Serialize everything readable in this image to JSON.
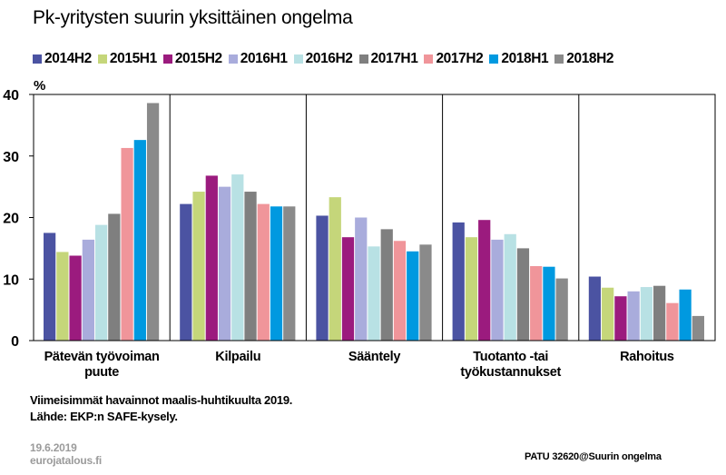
{
  "title": "Pk-yritysten suurin yksittäinen ongelma",
  "chart_data": {
    "type": "bar",
    "y_unit": "%",
    "ylim": [
      0,
      40
    ],
    "yticks": [
      "0",
      "10",
      "20",
      "30",
      "40"
    ],
    "grid": false,
    "legend_position": "top",
    "categories": [
      [
        "Pätevän työvoiman",
        "puute"
      ],
      [
        "Kilpailu"
      ],
      [
        "Sääntely"
      ],
      [
        "Tuotanto -tai",
        "työkustannukset"
      ],
      [
        "Rahoitus"
      ]
    ],
    "series": [
      {
        "name": "2014H2",
        "color": "#4b53a2",
        "values": [
          17.5,
          22.2,
          20.3,
          19.2,
          10.4
        ]
      },
      {
        "name": "2015H1",
        "color": "#c5d67a",
        "values": [
          14.4,
          24.2,
          23.3,
          16.8,
          8.6
        ]
      },
      {
        "name": "2015H2",
        "color": "#9b1b7e",
        "values": [
          13.8,
          26.8,
          16.8,
          19.6,
          7.2
        ]
      },
      {
        "name": "2016H1",
        "color": "#a9acdc",
        "values": [
          16.4,
          25.0,
          20.0,
          16.4,
          8.0
        ]
      },
      {
        "name": "2016H2",
        "color": "#b8e1e4",
        "values": [
          18.8,
          27.0,
          15.3,
          17.3,
          8.7
        ]
      },
      {
        "name": "2017H1",
        "color": "#7f7f7f",
        "values": [
          20.6,
          24.2,
          18.1,
          15.0,
          8.9
        ]
      },
      {
        "name": "2017H2",
        "color": "#f0959a",
        "values": [
          31.3,
          22.2,
          16.2,
          12.1,
          6.1
        ]
      },
      {
        "name": "2018H1",
        "color": "#0099e0",
        "values": [
          32.6,
          21.8,
          14.5,
          12.0,
          8.3
        ]
      },
      {
        "name": "2018H2",
        "color": "#8a8a8a",
        "values": [
          38.6,
          21.8,
          15.6,
          10.1,
          4.0
        ]
      }
    ]
  },
  "notes": {
    "line1": "Viimeisimmät havainnot maalis-huhtikuulta 2019.",
    "line2": "Lähde: EKP:n SAFE-kysely."
  },
  "footer": {
    "date": "19.6.2019",
    "site": "eurojatalous.fi",
    "code": "PATU 32620@Suurin ongelma"
  }
}
